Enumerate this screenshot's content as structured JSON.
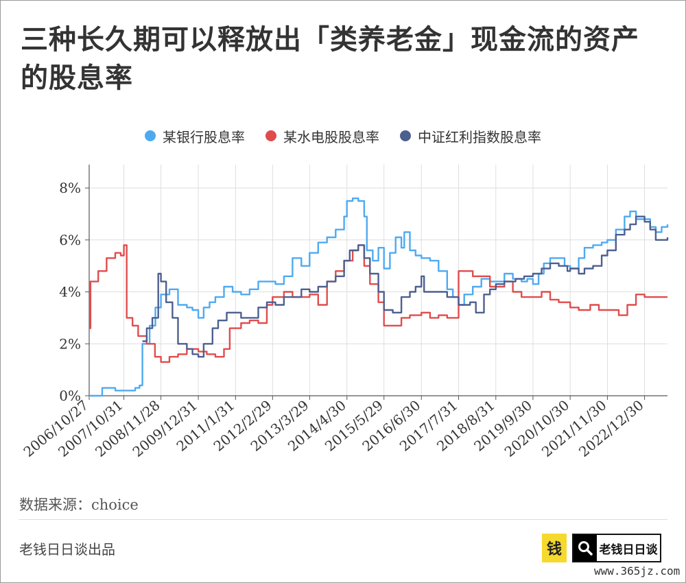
{
  "title": "三种长久期可以释放出「类养老金」现金流的资产的股息率",
  "source": "数据来源：choice",
  "producer": "老钱日日谈出品",
  "logo": {
    "money_char": "钱",
    "text": "老钱日日谈",
    "search_icon": "search-icon"
  },
  "watermark": "www.365jz.com",
  "colors": {
    "bank": "#4eaaf0",
    "hydro": "#e04c4c",
    "dividend": "#4d5f8f"
  },
  "chart_data": {
    "type": "line",
    "title": "三种长久期可以释放出「类养老金」现金流的资产的股息率",
    "xlabel": "",
    "ylabel": "",
    "x_ticks": [
      "2006/10/27",
      "2007/10/31",
      "2008/11/28",
      "2009/12/31",
      "2011/1/31",
      "2012/2/29",
      "2013/3/29",
      "2014/4/30",
      "2015/5/29",
      "2016/6/30",
      "2017/7/31",
      "2018/8/31",
      "2019/9/30",
      "2020/10/30",
      "2021/11/30",
      "2022/12/30"
    ],
    "y_ticks": [
      "0%",
      "2%",
      "4%",
      "6%",
      "8%"
    ],
    "xlim": [
      "2006-10-27",
      "2023-08-31"
    ],
    "ylim": [
      0,
      8.9
    ],
    "grid": true,
    "legend_position": "top-center",
    "series": [
      {
        "name": "某银行股息率",
        "color": "#4eaaf0",
        "points": [
          [
            "2006-10-27",
            0.0
          ],
          [
            "2007-01-31",
            0.0
          ],
          [
            "2007-03-15",
            0.3
          ],
          [
            "2007-06-01",
            0.3
          ],
          [
            "2007-08-01",
            0.2
          ],
          [
            "2007-12-01",
            0.2
          ],
          [
            "2008-02-29",
            0.3
          ],
          [
            "2008-04-15",
            0.4
          ],
          [
            "2008-05-15",
            2.0
          ],
          [
            "2008-07-31",
            2.7
          ],
          [
            "2008-09-30",
            3.4
          ],
          [
            "2008-11-28",
            3.9
          ],
          [
            "2009-02-27",
            4.1
          ],
          [
            "2009-05-29",
            3.5
          ],
          [
            "2009-08-31",
            3.4
          ],
          [
            "2009-10-30",
            3.3
          ],
          [
            "2009-12-31",
            3.0
          ],
          [
            "2010-02-26",
            3.4
          ],
          [
            "2010-04-30",
            3.6
          ],
          [
            "2010-06-30",
            3.8
          ],
          [
            "2010-09-30",
            4.2
          ],
          [
            "2010-12-31",
            4.0
          ],
          [
            "2011-03-31",
            3.9
          ],
          [
            "2011-06-30",
            4.1
          ],
          [
            "2011-09-30",
            4.4
          ],
          [
            "2011-12-30",
            4.4
          ],
          [
            "2012-03-30",
            4.3
          ],
          [
            "2012-06-29",
            4.6
          ],
          [
            "2012-09-28",
            5.3
          ],
          [
            "2012-12-31",
            5.0
          ],
          [
            "2013-03-29",
            5.5
          ],
          [
            "2013-06-28",
            5.9
          ],
          [
            "2013-09-30",
            6.1
          ],
          [
            "2013-12-31",
            6.4
          ],
          [
            "2014-03-31",
            6.9
          ],
          [
            "2014-04-30",
            7.5
          ],
          [
            "2014-06-30",
            7.6
          ],
          [
            "2014-08-29",
            7.5
          ],
          [
            "2014-10-31",
            6.9
          ],
          [
            "2014-11-28",
            5.6
          ],
          [
            "2015-01-30",
            5.2
          ],
          [
            "2015-03-31",
            5.7
          ],
          [
            "2015-05-29",
            4.9
          ],
          [
            "2015-07-31",
            5.5
          ],
          [
            "2015-09-30",
            6.1
          ],
          [
            "2015-11-30",
            5.7
          ],
          [
            "2015-12-31",
            6.3
          ],
          [
            "2016-02-29",
            5.6
          ],
          [
            "2016-04-29",
            5.4
          ],
          [
            "2016-06-30",
            5.3
          ],
          [
            "2016-09-30",
            5.2
          ],
          [
            "2016-12-30",
            4.8
          ],
          [
            "2017-03-31",
            4.1
          ],
          [
            "2017-05-31",
            3.8
          ],
          [
            "2017-07-31",
            3.5
          ],
          [
            "2017-09-29",
            3.9
          ],
          [
            "2017-12-29",
            4.2
          ],
          [
            "2018-03-30",
            4.5
          ],
          [
            "2018-06-29",
            4.4
          ],
          [
            "2018-08-31",
            4.4
          ],
          [
            "2018-11-30",
            4.7
          ],
          [
            "2019-02-28",
            4.5
          ],
          [
            "2019-05-31",
            4.4
          ],
          [
            "2019-07-31",
            4.5
          ],
          [
            "2019-09-30",
            4.3
          ],
          [
            "2019-11-29",
            4.7
          ],
          [
            "2020-01-23",
            5.1
          ],
          [
            "2020-03-31",
            5.3
          ],
          [
            "2020-06-30",
            5.3
          ],
          [
            "2020-08-31",
            5.0
          ],
          [
            "2020-10-30",
            4.9
          ],
          [
            "2021-01-29",
            5.3
          ],
          [
            "2021-03-31",
            5.7
          ],
          [
            "2021-06-30",
            5.8
          ],
          [
            "2021-09-30",
            5.9
          ],
          [
            "2021-11-30",
            6.0
          ],
          [
            "2022-02-28",
            6.4
          ],
          [
            "2022-05-31",
            6.9
          ],
          [
            "2022-07-29",
            7.1
          ],
          [
            "2022-09-30",
            6.8
          ],
          [
            "2022-12-30",
            6.8
          ],
          [
            "2023-02-28",
            6.5
          ],
          [
            "2023-04-28",
            6.3
          ],
          [
            "2023-06-30",
            6.5
          ],
          [
            "2023-08-31",
            6.6
          ]
        ]
      },
      {
        "name": "某水电股股息率",
        "color": "#e04c4c",
        "points": [
          [
            "2006-10-27",
            2.6
          ],
          [
            "2006-11-10",
            4.4
          ],
          [
            "2007-01-31",
            4.8
          ],
          [
            "2007-04-30",
            5.3
          ],
          [
            "2007-07-31",
            5.5
          ],
          [
            "2007-09-28",
            5.4
          ],
          [
            "2007-10-31",
            5.8
          ],
          [
            "2007-11-30",
            3.0
          ],
          [
            "2008-01-31",
            2.7
          ],
          [
            "2008-03-31",
            2.3
          ],
          [
            "2008-06-30",
            2.0
          ],
          [
            "2008-09-26",
            1.5
          ],
          [
            "2008-11-28",
            1.3
          ],
          [
            "2009-02-27",
            1.5
          ],
          [
            "2009-05-29",
            1.6
          ],
          [
            "2009-08-31",
            1.8
          ],
          [
            "2009-12-31",
            1.7
          ],
          [
            "2010-03-31",
            1.6
          ],
          [
            "2010-06-30",
            1.5
          ],
          [
            "2010-09-30",
            1.8
          ],
          [
            "2010-11-30",
            2.6
          ],
          [
            "2011-03-31",
            2.8
          ],
          [
            "2011-06-30",
            2.9
          ],
          [
            "2011-09-30",
            2.8
          ],
          [
            "2011-12-30",
            3.5
          ],
          [
            "2012-02-29",
            3.8
          ],
          [
            "2012-06-29",
            4.0
          ],
          [
            "2012-09-28",
            3.8
          ],
          [
            "2012-12-31",
            3.8
          ],
          [
            "2013-03-29",
            3.9
          ],
          [
            "2013-06-28",
            3.5
          ],
          [
            "2013-09-30",
            4.4
          ],
          [
            "2013-12-31",
            4.8
          ],
          [
            "2014-03-31",
            5.2
          ],
          [
            "2014-06-30",
            5.6
          ],
          [
            "2014-08-29",
            5.8
          ],
          [
            "2014-10-31",
            5.0
          ],
          [
            "2014-12-31",
            4.3
          ],
          [
            "2015-03-31",
            3.6
          ],
          [
            "2015-05-29",
            2.7
          ],
          [
            "2015-08-31",
            2.7
          ],
          [
            "2015-11-30",
            3.0
          ],
          [
            "2016-02-29",
            3.1
          ],
          [
            "2016-06-30",
            3.2
          ],
          [
            "2016-09-30",
            3.0
          ],
          [
            "2016-12-30",
            3.1
          ],
          [
            "2017-03-31",
            3.0
          ],
          [
            "2017-06-30",
            3.0
          ],
          [
            "2017-07-31",
            4.8
          ],
          [
            "2017-10-31",
            4.8
          ],
          [
            "2017-12-29",
            4.6
          ],
          [
            "2018-03-30",
            4.6
          ],
          [
            "2018-06-29",
            4.2
          ],
          [
            "2018-08-31",
            4.2
          ],
          [
            "2018-11-30",
            4.4
          ],
          [
            "2019-02-28",
            4.0
          ],
          [
            "2019-05-31",
            3.8
          ],
          [
            "2019-09-30",
            3.8
          ],
          [
            "2019-12-31",
            4.0
          ],
          [
            "2020-03-31",
            3.7
          ],
          [
            "2020-06-30",
            3.6
          ],
          [
            "2020-10-30",
            3.4
          ],
          [
            "2021-01-29",
            3.3
          ],
          [
            "2021-05-31",
            3.5
          ],
          [
            "2021-08-31",
            3.3
          ],
          [
            "2021-11-30",
            3.3
          ],
          [
            "2022-03-31",
            3.1
          ],
          [
            "2022-06-30",
            3.5
          ],
          [
            "2022-09-30",
            3.9
          ],
          [
            "2022-12-30",
            3.8
          ],
          [
            "2023-03-31",
            3.8
          ],
          [
            "2023-08-31",
            3.8
          ]
        ]
      },
      {
        "name": "中证红利指数股息率",
        "color": "#4d5f8f",
        "points": [
          [
            "2008-05-15",
            2.1
          ],
          [
            "2008-06-30",
            2.6
          ],
          [
            "2008-08-29",
            3.0
          ],
          [
            "2008-10-31",
            4.7
          ],
          [
            "2008-11-28",
            4.4
          ],
          [
            "2009-01-23",
            3.6
          ],
          [
            "2009-03-31",
            3.0
          ],
          [
            "2009-05-29",
            2.0
          ],
          [
            "2009-08-31",
            1.8
          ],
          [
            "2009-10-30",
            1.6
          ],
          [
            "2009-12-31",
            1.5
          ],
          [
            "2010-02-26",
            2.0
          ],
          [
            "2010-05-31",
            2.6
          ],
          [
            "2010-07-30",
            2.9
          ],
          [
            "2010-10-29",
            3.2
          ],
          [
            "2010-12-31",
            3.2
          ],
          [
            "2011-03-31",
            3.0
          ],
          [
            "2011-06-30",
            3.0
          ],
          [
            "2011-09-30",
            3.4
          ],
          [
            "2011-12-30",
            3.6
          ],
          [
            "2012-03-30",
            3.5
          ],
          [
            "2012-06-29",
            3.8
          ],
          [
            "2012-09-28",
            3.8
          ],
          [
            "2012-12-31",
            4.1
          ],
          [
            "2013-03-29",
            4.0
          ],
          [
            "2013-06-28",
            4.2
          ],
          [
            "2013-09-30",
            4.4
          ],
          [
            "2013-12-31",
            4.6
          ],
          [
            "2014-03-31",
            5.2
          ],
          [
            "2014-05-30",
            5.6
          ],
          [
            "2014-08-29",
            5.8
          ],
          [
            "2014-10-31",
            5.3
          ],
          [
            "2014-12-31",
            4.7
          ],
          [
            "2015-03-31",
            4.0
          ],
          [
            "2015-05-29",
            3.3
          ],
          [
            "2015-08-31",
            3.2
          ],
          [
            "2015-11-30",
            3.8
          ],
          [
            "2016-02-29",
            4.0
          ],
          [
            "2016-04-29",
            4.2
          ],
          [
            "2016-06-30",
            4.6
          ],
          [
            "2016-07-29",
            4.0
          ],
          [
            "2016-12-30",
            4.0
          ],
          [
            "2017-03-31",
            3.8
          ],
          [
            "2017-06-30",
            3.8
          ],
          [
            "2017-07-31",
            3.5
          ],
          [
            "2017-11-30",
            3.6
          ],
          [
            "2018-01-31",
            3.2
          ],
          [
            "2018-04-27",
            3.9
          ],
          [
            "2018-06-29",
            4.1
          ],
          [
            "2018-08-31",
            4.3
          ],
          [
            "2018-11-30",
            4.4
          ],
          [
            "2019-03-29",
            4.5
          ],
          [
            "2019-06-28",
            4.6
          ],
          [
            "2019-09-30",
            4.7
          ],
          [
            "2019-12-31",
            4.9
          ],
          [
            "2020-03-31",
            5.1
          ],
          [
            "2020-06-30",
            5.0
          ],
          [
            "2020-09-30",
            4.8
          ],
          [
            "2020-10-30",
            4.9
          ],
          [
            "2021-01-29",
            4.7
          ],
          [
            "2021-03-31",
            4.9
          ],
          [
            "2021-06-30",
            5.0
          ],
          [
            "2021-09-30",
            5.4
          ],
          [
            "2021-11-30",
            5.6
          ],
          [
            "2022-02-28",
            6.2
          ],
          [
            "2022-05-31",
            6.4
          ],
          [
            "2022-07-29",
            6.6
          ],
          [
            "2022-09-30",
            6.9
          ],
          [
            "2022-12-30",
            6.7
          ],
          [
            "2023-02-28",
            6.4
          ],
          [
            "2023-04-28",
            6.0
          ],
          [
            "2023-06-30",
            6.0
          ],
          [
            "2023-08-31",
            6.1
          ]
        ]
      }
    ]
  }
}
